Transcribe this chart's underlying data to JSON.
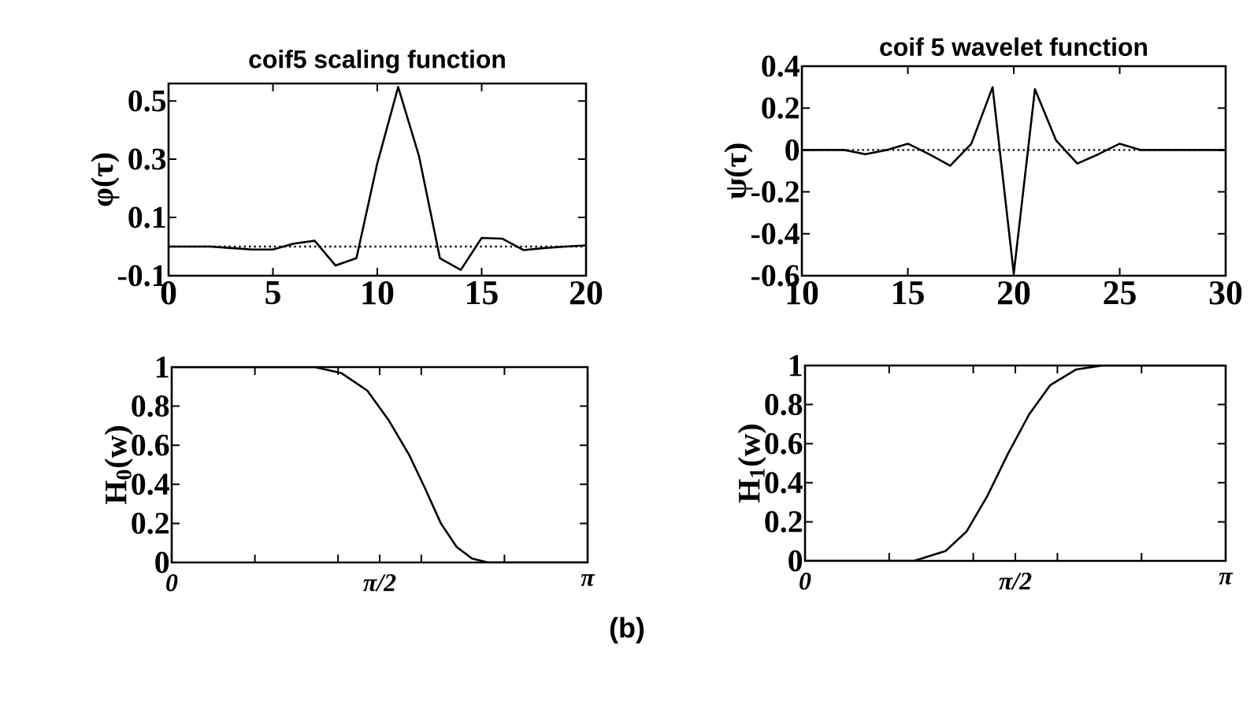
{
  "chart_data": [
    {
      "type": "line",
      "title": "coif5  scaling function",
      "ylabel": "φ(τ)",
      "x": [
        0,
        1,
        2,
        3,
        4,
        5,
        6,
        7,
        8,
        9,
        10,
        11,
        12,
        13,
        14,
        15,
        16,
        17,
        18,
        19,
        20
      ],
      "series": [
        {
          "color": "#000000",
          "values": [
            0,
            0,
            0,
            -0.005,
            -0.01,
            -0.01,
            0.01,
            0.02,
            -0.065,
            -0.04,
            0.286,
            0.548,
            0.31,
            -0.04,
            -0.08,
            0.03,
            0.027,
            -0.012,
            -0.005,
            0,
            0.004
          ]
        }
      ],
      "xlim": [
        0,
        20
      ],
      "ylim": [
        -0.1,
        0.56
      ],
      "xticks": [
        0,
        5,
        10,
        15,
        20
      ],
      "yticks": [
        -0.1,
        0.1,
        0.3,
        0.5
      ],
      "ref_lines": [
        {
          "axis": "y",
          "value": 0,
          "line_style": "dotted"
        }
      ]
    },
    {
      "type": "line",
      "title": "coif 5 wavelet function",
      "ylabel": "ψ(τ)",
      "x": [
        10,
        11,
        12,
        13,
        14,
        15,
        16,
        17,
        18,
        19,
        20,
        21,
        22,
        23,
        24,
        25,
        26,
        27,
        28,
        29,
        30
      ],
      "series": [
        {
          "color": "#000000",
          "values": [
            0,
            0,
            0,
            -0.02,
            0,
            0.03,
            -0.02,
            -0.075,
            0.03,
            0.3,
            -0.59,
            0.29,
            0.045,
            -0.065,
            -0.02,
            0.03,
            0,
            0,
            0,
            0,
            0
          ]
        }
      ],
      "xlim": [
        10,
        30
      ],
      "ylim": [
        -0.6,
        0.4
      ],
      "xticks": [
        10,
        15,
        20,
        25,
        30
      ],
      "yticks": [
        -0.6,
        -0.4,
        -0.2,
        0,
        0.2,
        0.4
      ],
      "ref_lines": [
        {
          "axis": "y",
          "value": 0,
          "line_style": "dotted"
        }
      ]
    },
    {
      "type": "line",
      "ylabel": "H$_{0}$(w)",
      "x": [
        0,
        1.081,
        1.279,
        1.477,
        1.637,
        1.794,
        1.913,
        2.033,
        2.152,
        2.268,
        2.388,
        3.1416
      ],
      "series": [
        {
          "color": "#000000",
          "values": [
            1,
            1,
            0.97,
            0.88,
            0.73,
            0.55,
            0.38,
            0.2,
            0.08,
            0.02,
            0,
            0
          ]
        }
      ],
      "xlim": [
        0,
        3.1416
      ],
      "ylim": [
        0,
        1
      ],
      "xticks": [
        {
          "value": 0,
          "label": "0"
        },
        {
          "value": 0.6283,
          "label": null
        },
        {
          "value": 1.2566,
          "label": null
        },
        {
          "value": 1.5708,
          "label": "π/2"
        },
        {
          "value": 1.885,
          "label": null
        },
        {
          "value": 2.5133,
          "label": null
        },
        {
          "value": 3.1416,
          "label": "π"
        }
      ],
      "yticks": [
        0,
        0.2,
        0.4,
        0.6,
        0.8,
        1
      ],
      "annotations": [
        "(b)"
      ]
    },
    {
      "type": "line",
      "ylabel": "H$_{1}$(w)",
      "x": [
        0,
        0.814,
        1.049,
        1.206,
        1.36,
        1.517,
        1.674,
        1.832,
        2.026,
        2.221,
        3.1416
      ],
      "series": [
        {
          "color": "#000000",
          "values": [
            0,
            0,
            0.05,
            0.15,
            0.33,
            0.55,
            0.75,
            0.9,
            0.98,
            1,
            1
          ]
        }
      ],
      "xlim": [
        0,
        3.1416
      ],
      "ylim": [
        0,
        1
      ],
      "xticks": [
        {
          "value": 0,
          "label": "0"
        },
        {
          "value": 0.6283,
          "label": null
        },
        {
          "value": 1.2566,
          "label": null
        },
        {
          "value": 1.5708,
          "label": "π/2"
        },
        {
          "value": 1.885,
          "label": null
        },
        {
          "value": 2.5133,
          "label": null
        },
        {
          "value": 3.1416,
          "label": "π"
        }
      ],
      "yticks": [
        0,
        0.2,
        0.4,
        0.6,
        0.8,
        1
      ]
    }
  ]
}
